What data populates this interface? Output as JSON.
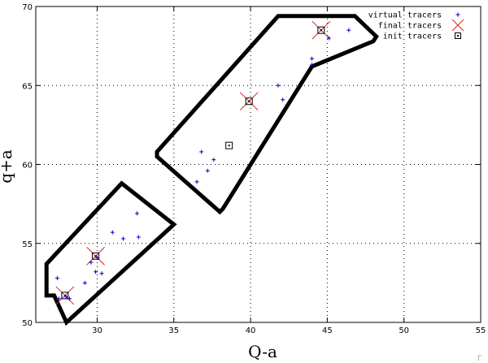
{
  "chart_data": {
    "type": "scatter",
    "xlabel": "Q-a",
    "ylabel": "q+a",
    "xlim": [
      26,
      55
    ],
    "ylim": [
      50,
      70
    ],
    "xticks": [
      30,
      35,
      40,
      45,
      50,
      55
    ],
    "yticks": [
      50,
      55,
      60,
      65,
      70
    ],
    "xtick_labels": [
      "30",
      "35",
      "40",
      "45",
      "50",
      "55"
    ],
    "ytick_labels": [
      "50",
      "55",
      "60",
      "65",
      "70"
    ],
    "grid": true,
    "legend_position": "top-right",
    "regions": [
      {
        "outline": [
          [
            27.2,
            51.7
          ],
          [
            28.0,
            50.0
          ],
          [
            35.0,
            56.2
          ],
          [
            31.6,
            58.8
          ],
          [
            26.7,
            53.7
          ],
          [
            26.7,
            51.7
          ]
        ]
      },
      {
        "outline": [
          [
            38.0,
            57.0
          ],
          [
            33.9,
            60.5
          ],
          [
            33.9,
            60.8
          ],
          [
            41.8,
            69.4
          ],
          [
            46.8,
            69.4
          ],
          [
            48.2,
            68.1
          ],
          [
            48.0,
            67.8
          ],
          [
            44.0,
            66.2
          ],
          [
            38.2,
            57.2
          ]
        ]
      }
    ],
    "series": [
      {
        "name": "virtual tracers",
        "marker": "plus",
        "color": "#0000cc",
        "points": [
          [
            27.4,
            52.8
          ],
          [
            28.2,
            51.5
          ],
          [
            27.5,
            51.5
          ],
          [
            28.0,
            51.6
          ],
          [
            29.2,
            52.5
          ],
          [
            29.6,
            53.8
          ],
          [
            29.9,
            53.2
          ],
          [
            30.3,
            53.1
          ],
          [
            30.0,
            54.1
          ],
          [
            31.0,
            55.7
          ],
          [
            31.7,
            55.3
          ],
          [
            32.6,
            56.9
          ],
          [
            32.7,
            55.4
          ],
          [
            36.5,
            58.9
          ],
          [
            37.2,
            59.6
          ],
          [
            37.6,
            60.3
          ],
          [
            36.8,
            60.8
          ],
          [
            41.8,
            65.0
          ],
          [
            42.1,
            64.1
          ],
          [
            44.0,
            66.7
          ],
          [
            44.0,
            66.3
          ],
          [
            45.1,
            68.0
          ],
          [
            46.4,
            68.5
          ]
        ]
      },
      {
        "name": "final tracers",
        "marker": "x",
        "color": "#dd2222",
        "points": [
          [
            27.9,
            51.7
          ],
          [
            29.9,
            54.2
          ],
          [
            39.9,
            64.0
          ],
          [
            44.6,
            68.5
          ]
        ]
      },
      {
        "name": "init tracers",
        "marker": "square",
        "color": "#000000",
        "points": [
          [
            27.9,
            51.7
          ],
          [
            29.9,
            54.2
          ],
          [
            38.6,
            61.2
          ],
          [
            39.9,
            64.0
          ],
          [
            44.6,
            68.5
          ]
        ]
      }
    ]
  },
  "corner_mark": "Γ"
}
